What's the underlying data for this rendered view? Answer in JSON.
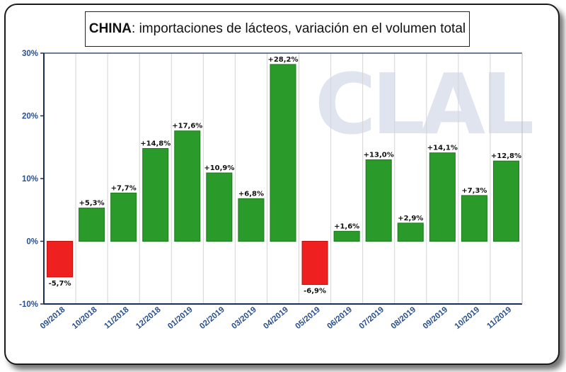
{
  "title": {
    "bold": "CHINA",
    "rest": ": importaciones de lácteos, variación en el volumen total"
  },
  "watermark": "CLAL",
  "colors": {
    "positive": "#2a9a2a",
    "negative": "#ee2020",
    "axis_text": "#2a4f8a"
  },
  "chart_data": {
    "type": "bar",
    "title": "CHINA: importaciones de lácteos, variación en el volumen total",
    "categories": [
      "09/2018",
      "10/2018",
      "11/2018",
      "12/2018",
      "01/2019",
      "02/2019",
      "03/2019",
      "04/2019",
      "05/2019",
      "06/2019",
      "07/2019",
      "08/2019",
      "09/2019",
      "10/2019",
      "11/2019"
    ],
    "values": [
      -5.7,
      5.3,
      7.7,
      14.8,
      17.6,
      10.9,
      6.8,
      28.2,
      -6.9,
      1.6,
      13.0,
      2.9,
      14.1,
      7.3,
      12.8
    ],
    "data_labels": [
      "-5,7%",
      "+5,3%",
      "+7,7%",
      "+14,8%",
      "+17,6%",
      "+10,9%",
      "+6,8%",
      "+28,2%",
      "-6,9%",
      "+1,6%",
      "+13,0%",
      "+2,9%",
      "+14,1%",
      "+7,3%",
      "+12,8%"
    ],
    "y_ticks": [
      30,
      20,
      10,
      0,
      -10
    ],
    "y_tick_labels": [
      "30%",
      "20%",
      "10%",
      "0%",
      "-10%"
    ],
    "ylim": [
      -10,
      30
    ],
    "xlabel": "",
    "ylabel": "",
    "grid": "vertical",
    "legend": "none"
  }
}
